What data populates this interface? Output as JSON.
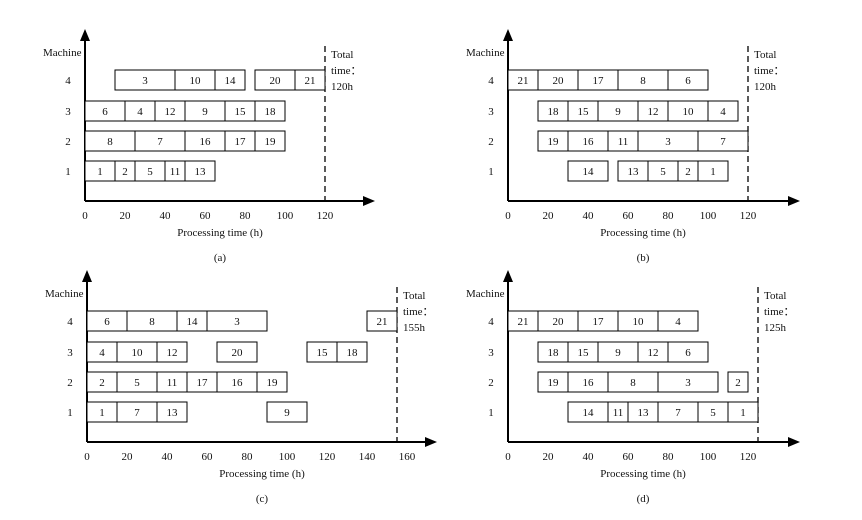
{
  "chart_data": [
    {
      "type": "gantt",
      "caption": "(a)",
      "ylabel": "Machine",
      "xlabel": "Processing time  (h)",
      "machines": [
        "1",
        "2",
        "3",
        "4"
      ],
      "xticks": [
        0,
        20,
        40,
        60,
        80,
        100,
        120
      ],
      "total_label": [
        "Total",
        "time：",
        "120h"
      ],
      "total_time": 120,
      "tasks": [
        {
          "job": "3",
          "machine": 4,
          "start": 15,
          "end": 45
        },
        {
          "job": "10",
          "machine": 4,
          "start": 45,
          "end": 65
        },
        {
          "job": "14",
          "machine": 4,
          "start": 65,
          "end": 80
        },
        {
          "job": "20",
          "machine": 4,
          "start": 85,
          "end": 105
        },
        {
          "job": "21",
          "machine": 4,
          "start": 105,
          "end": 120
        },
        {
          "job": "6",
          "machine": 3,
          "start": 0,
          "end": 20
        },
        {
          "job": "4",
          "machine": 3,
          "start": 20,
          "end": 35
        },
        {
          "job": "12",
          "machine": 3,
          "start": 35,
          "end": 50
        },
        {
          "job": "9",
          "machine": 3,
          "start": 50,
          "end": 70
        },
        {
          "job": "15",
          "machine": 3,
          "start": 70,
          "end": 85
        },
        {
          "job": "18",
          "machine": 3,
          "start": 85,
          "end": 100
        },
        {
          "job": "8",
          "machine": 2,
          "start": 0,
          "end": 25
        },
        {
          "job": "7",
          "machine": 2,
          "start": 25,
          "end": 50
        },
        {
          "job": "16",
          "machine": 2,
          "start": 50,
          "end": 70
        },
        {
          "job": "17",
          "machine": 2,
          "start": 70,
          "end": 85
        },
        {
          "job": "19",
          "machine": 2,
          "start": 85,
          "end": 100
        },
        {
          "job": "1",
          "machine": 1,
          "start": 0,
          "end": 15
        },
        {
          "job": "2",
          "machine": 1,
          "start": 15,
          "end": 25
        },
        {
          "job": "5",
          "machine": 1,
          "start": 25,
          "end": 40
        },
        {
          "job": "11",
          "machine": 1,
          "start": 40,
          "end": 50
        },
        {
          "job": "13",
          "machine": 1,
          "start": 50,
          "end": 65
        }
      ]
    },
    {
      "type": "gantt",
      "caption": "(b)",
      "ylabel": "Machine",
      "xlabel": "Processing time  (h)",
      "machines": [
        "1",
        "2",
        "3",
        "4"
      ],
      "xticks": [
        0,
        20,
        40,
        60,
        80,
        100,
        120
      ],
      "total_label": [
        "Total",
        "time：",
        "120h"
      ],
      "total_time": 120,
      "tasks": [
        {
          "job": "21",
          "machine": 4,
          "start": 0,
          "end": 15
        },
        {
          "job": "20",
          "machine": 4,
          "start": 15,
          "end": 35
        },
        {
          "job": "17",
          "machine": 4,
          "start": 35,
          "end": 55
        },
        {
          "job": "8",
          "machine": 4,
          "start": 55,
          "end": 80
        },
        {
          "job": "6",
          "machine": 4,
          "start": 80,
          "end": 100
        },
        {
          "job": "18",
          "machine": 3,
          "start": 15,
          "end": 30
        },
        {
          "job": "15",
          "machine": 3,
          "start": 30,
          "end": 45
        },
        {
          "job": "9",
          "machine": 3,
          "start": 45,
          "end": 65
        },
        {
          "job": "12",
          "machine": 3,
          "start": 65,
          "end": 80
        },
        {
          "job": "10",
          "machine": 3,
          "start": 80,
          "end": 100
        },
        {
          "job": "4",
          "machine": 3,
          "start": 100,
          "end": 115
        },
        {
          "job": "19",
          "machine": 2,
          "start": 15,
          "end": 30
        },
        {
          "job": "16",
          "machine": 2,
          "start": 30,
          "end": 50
        },
        {
          "job": "11",
          "machine": 2,
          "start": 50,
          "end": 65
        },
        {
          "job": "3",
          "machine": 2,
          "start": 65,
          "end": 95
        },
        {
          "job": "7",
          "machine": 2,
          "start": 95,
          "end": 120
        },
        {
          "job": "14",
          "machine": 1,
          "start": 30,
          "end": 50
        },
        {
          "job": "13",
          "machine": 1,
          "start": 55,
          "end": 70
        },
        {
          "job": "5",
          "machine": 1,
          "start": 70,
          "end": 85
        },
        {
          "job": "2",
          "machine": 1,
          "start": 85,
          "end": 95
        },
        {
          "job": "1",
          "machine": 1,
          "start": 95,
          "end": 110
        }
      ]
    },
    {
      "type": "gantt",
      "caption": "(c)",
      "ylabel": "Machine",
      "xlabel": "Processing time  (h)",
      "machines": [
        "1",
        "2",
        "3",
        "4"
      ],
      "xticks": [
        0,
        20,
        40,
        60,
        80,
        100,
        120,
        140,
        160
      ],
      "total_label": [
        "Total",
        "time：",
        "155h"
      ],
      "total_time": 155,
      "tasks": [
        {
          "job": "6",
          "machine": 4,
          "start": 0,
          "end": 20
        },
        {
          "job": "8",
          "machine": 4,
          "start": 20,
          "end": 45
        },
        {
          "job": "14",
          "machine": 4,
          "start": 45,
          "end": 60
        },
        {
          "job": "3",
          "machine": 4,
          "start": 60,
          "end": 90
        },
        {
          "job": "21",
          "machine": 4,
          "start": 140,
          "end": 155
        },
        {
          "job": "4",
          "machine": 3,
          "start": 0,
          "end": 15
        },
        {
          "job": "10",
          "machine": 3,
          "start": 15,
          "end": 35
        },
        {
          "job": "12",
          "machine": 3,
          "start": 35,
          "end": 50
        },
        {
          "job": "20",
          "machine": 3,
          "start": 65,
          "end": 85
        },
        {
          "job": "15",
          "machine": 3,
          "start": 110,
          "end": 125
        },
        {
          "job": "18",
          "machine": 3,
          "start": 125,
          "end": 140
        },
        {
          "job": "2",
          "machine": 2,
          "start": 0,
          "end": 15
        },
        {
          "job": "5",
          "machine": 2,
          "start": 15,
          "end": 35
        },
        {
          "job": "11",
          "machine": 2,
          "start": 35,
          "end": 50
        },
        {
          "job": "17",
          "machine": 2,
          "start": 50,
          "end": 65
        },
        {
          "job": "16",
          "machine": 2,
          "start": 65,
          "end": 85
        },
        {
          "job": "19",
          "machine": 2,
          "start": 85,
          "end": 100
        },
        {
          "job": "1",
          "machine": 1,
          "start": 0,
          "end": 15
        },
        {
          "job": "7",
          "machine": 1,
          "start": 15,
          "end": 35
        },
        {
          "job": "13",
          "machine": 1,
          "start": 35,
          "end": 50
        },
        {
          "job": "9",
          "machine": 1,
          "start": 90,
          "end": 110
        }
      ]
    },
    {
      "type": "gantt",
      "caption": "(d)",
      "ylabel": "Machine",
      "xlabel": "Processing time  (h)",
      "machines": [
        "1",
        "2",
        "3",
        "4"
      ],
      "xticks": [
        0,
        20,
        40,
        60,
        80,
        100,
        120
      ],
      "total_label": [
        "Total",
        "time：",
        "125h"
      ],
      "total_time": 125,
      "tasks": [
        {
          "job": "21",
          "machine": 4,
          "start": 0,
          "end": 15
        },
        {
          "job": "20",
          "machine": 4,
          "start": 15,
          "end": 35
        },
        {
          "job": "17",
          "machine": 4,
          "start": 35,
          "end": 55
        },
        {
          "job": "10",
          "machine": 4,
          "start": 55,
          "end": 75
        },
        {
          "job": "4",
          "machine": 4,
          "start": 75,
          "end": 95
        },
        {
          "job": "18",
          "machine": 3,
          "start": 15,
          "end": 30
        },
        {
          "job": "15",
          "machine": 3,
          "start": 30,
          "end": 45
        },
        {
          "job": "9",
          "machine": 3,
          "start": 45,
          "end": 65
        },
        {
          "job": "12",
          "machine": 3,
          "start": 65,
          "end": 80
        },
        {
          "job": "6",
          "machine": 3,
          "start": 80,
          "end": 100
        },
        {
          "job": "19",
          "machine": 2,
          "start": 15,
          "end": 30
        },
        {
          "job": "16",
          "machine": 2,
          "start": 30,
          "end": 50
        },
        {
          "job": "8",
          "machine": 2,
          "start": 50,
          "end": 75
        },
        {
          "job": "3",
          "machine": 2,
          "start": 75,
          "end": 105
        },
        {
          "job": "2",
          "machine": 2,
          "start": 110,
          "end": 120
        },
        {
          "job": "14",
          "machine": 1,
          "start": 30,
          "end": 50
        },
        {
          "job": "11",
          "machine": 1,
          "start": 50,
          "end": 60
        },
        {
          "job": "13",
          "machine": 1,
          "start": 60,
          "end": 75
        },
        {
          "job": "7",
          "machine": 1,
          "start": 75,
          "end": 95
        },
        {
          "job": "5",
          "machine": 1,
          "start": 95,
          "end": 110
        },
        {
          "job": "1",
          "machine": 1,
          "start": 110,
          "end": 125
        }
      ]
    }
  ]
}
